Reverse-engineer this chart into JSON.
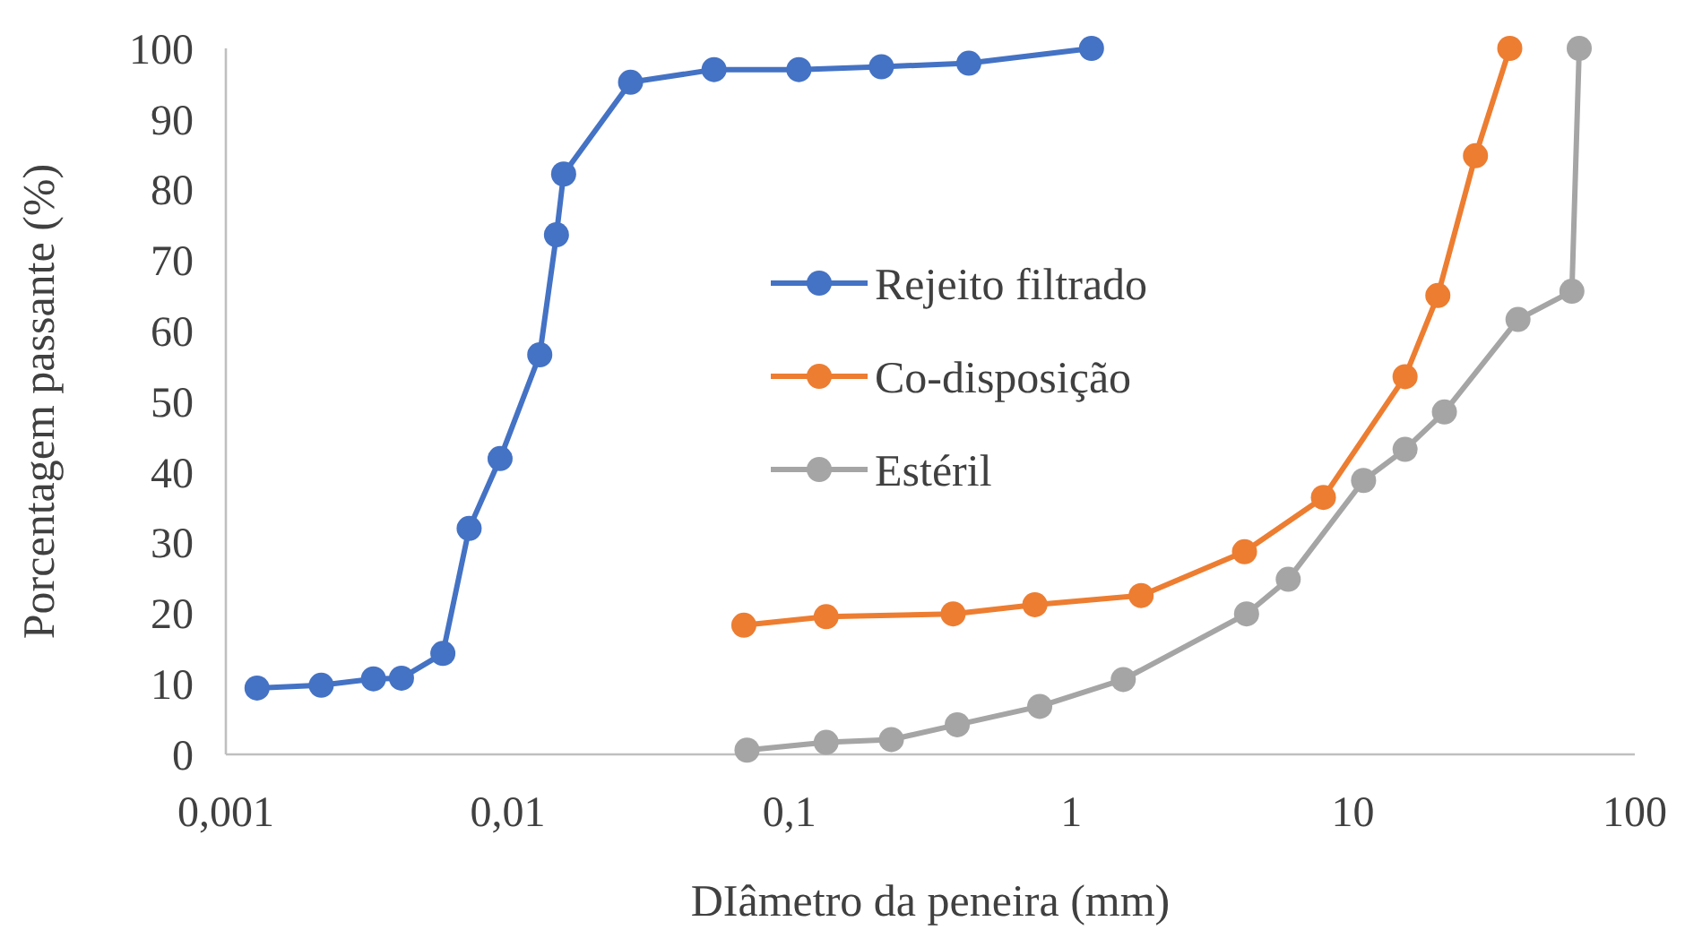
{
  "chart_data": {
    "type": "line",
    "xlabel": "DIâmetro da peneira (mm)",
    "ylabel": "Porcentagem passante (%)",
    "log": "x",
    "xlim": [
      0.001,
      100
    ],
    "xticks": [
      {
        "value": 0.001,
        "label": "0,001"
      },
      {
        "value": 0.01,
        "label": "0,01"
      },
      {
        "value": 0.1,
        "label": "0,1"
      },
      1,
      10,
      100
    ],
    "ylim": [
      0,
      100
    ],
    "yticks": [
      0,
      10,
      20,
      30,
      40,
      50,
      60,
      70,
      80,
      90,
      100
    ],
    "grid": false,
    "legend": "right",
    "marker": "circle",
    "line_style": "solid",
    "series": [
      {
        "name": "Rejeito filtrado",
        "color": "#4472c4",
        "x": [
          0.00129,
          0.00218,
          0.00334,
          0.0042,
          0.00589,
          0.0073,
          0.0094,
          0.013,
          0.0149,
          0.0158,
          0.0273,
          0.054,
          0.108,
          0.212,
          0.433,
          1.18
        ],
        "values": [
          9.4,
          9.8,
          10.7,
          10.8,
          14.3,
          32,
          41.9,
          56.6,
          73.6,
          82.2,
          95.2,
          97,
          97,
          97.4,
          97.9,
          100
        ]
      },
      {
        "name": "Co-disposição",
        "color": "#ed7d31",
        "x": [
          0.0689,
          0.135,
          0.381,
          0.743,
          1.77,
          4.12,
          7.85,
          15.3,
          20,
          27.2,
          36
        ],
        "values": [
          18.3,
          19.5,
          19.9,
          21.2,
          22.5,
          28.7,
          36.4,
          53.5,
          65,
          84.8,
          100
        ]
      },
      {
        "name": "Estéril",
        "color": "#a5a5a5",
        "x": [
          0.0707,
          0.135,
          0.23,
          0.394,
          0.773,
          1.53,
          4.19,
          5.89,
          10.9,
          15.3,
          21.1,
          38.5,
          59.8,
          63.5
        ],
        "values": [
          0.6,
          1.7,
          2.1,
          4.2,
          6.8,
          10.6,
          19.9,
          24.8,
          38.8,
          43.2,
          48.5,
          61.6,
          65.6,
          100
        ]
      }
    ]
  }
}
